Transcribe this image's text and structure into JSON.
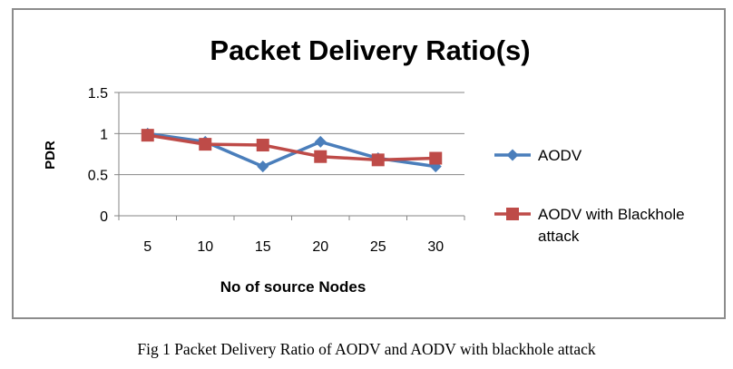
{
  "chart_data": {
    "type": "line",
    "title": "Packet Delivery Ratio(s)",
    "xlabel": "No of source Nodes",
    "ylabel": "PDR",
    "categories": [
      "5",
      "10",
      "15",
      "20",
      "25",
      "30"
    ],
    "yticks": [
      "0",
      "0.5",
      "1",
      "1.5"
    ],
    "ylim": [
      0,
      1.5
    ],
    "grid": "horizontal",
    "legend_position": "right",
    "series": [
      {
        "name": "AODV",
        "values": [
          1.0,
          0.9,
          0.6,
          0.9,
          0.7,
          0.6
        ],
        "color": "#4a7ebb",
        "marker": "diamond"
      },
      {
        "name": "AODV with Blackhole attack",
        "legend_lines": [
          "AODV with Blackhole",
          "attack"
        ],
        "values": [
          0.98,
          0.87,
          0.86,
          0.72,
          0.68,
          0.7
        ],
        "color": "#be4b48",
        "marker": "square"
      }
    ]
  },
  "caption": "Fig 1 Packet Delivery Ratio of AODV and AODV with blackhole attack"
}
